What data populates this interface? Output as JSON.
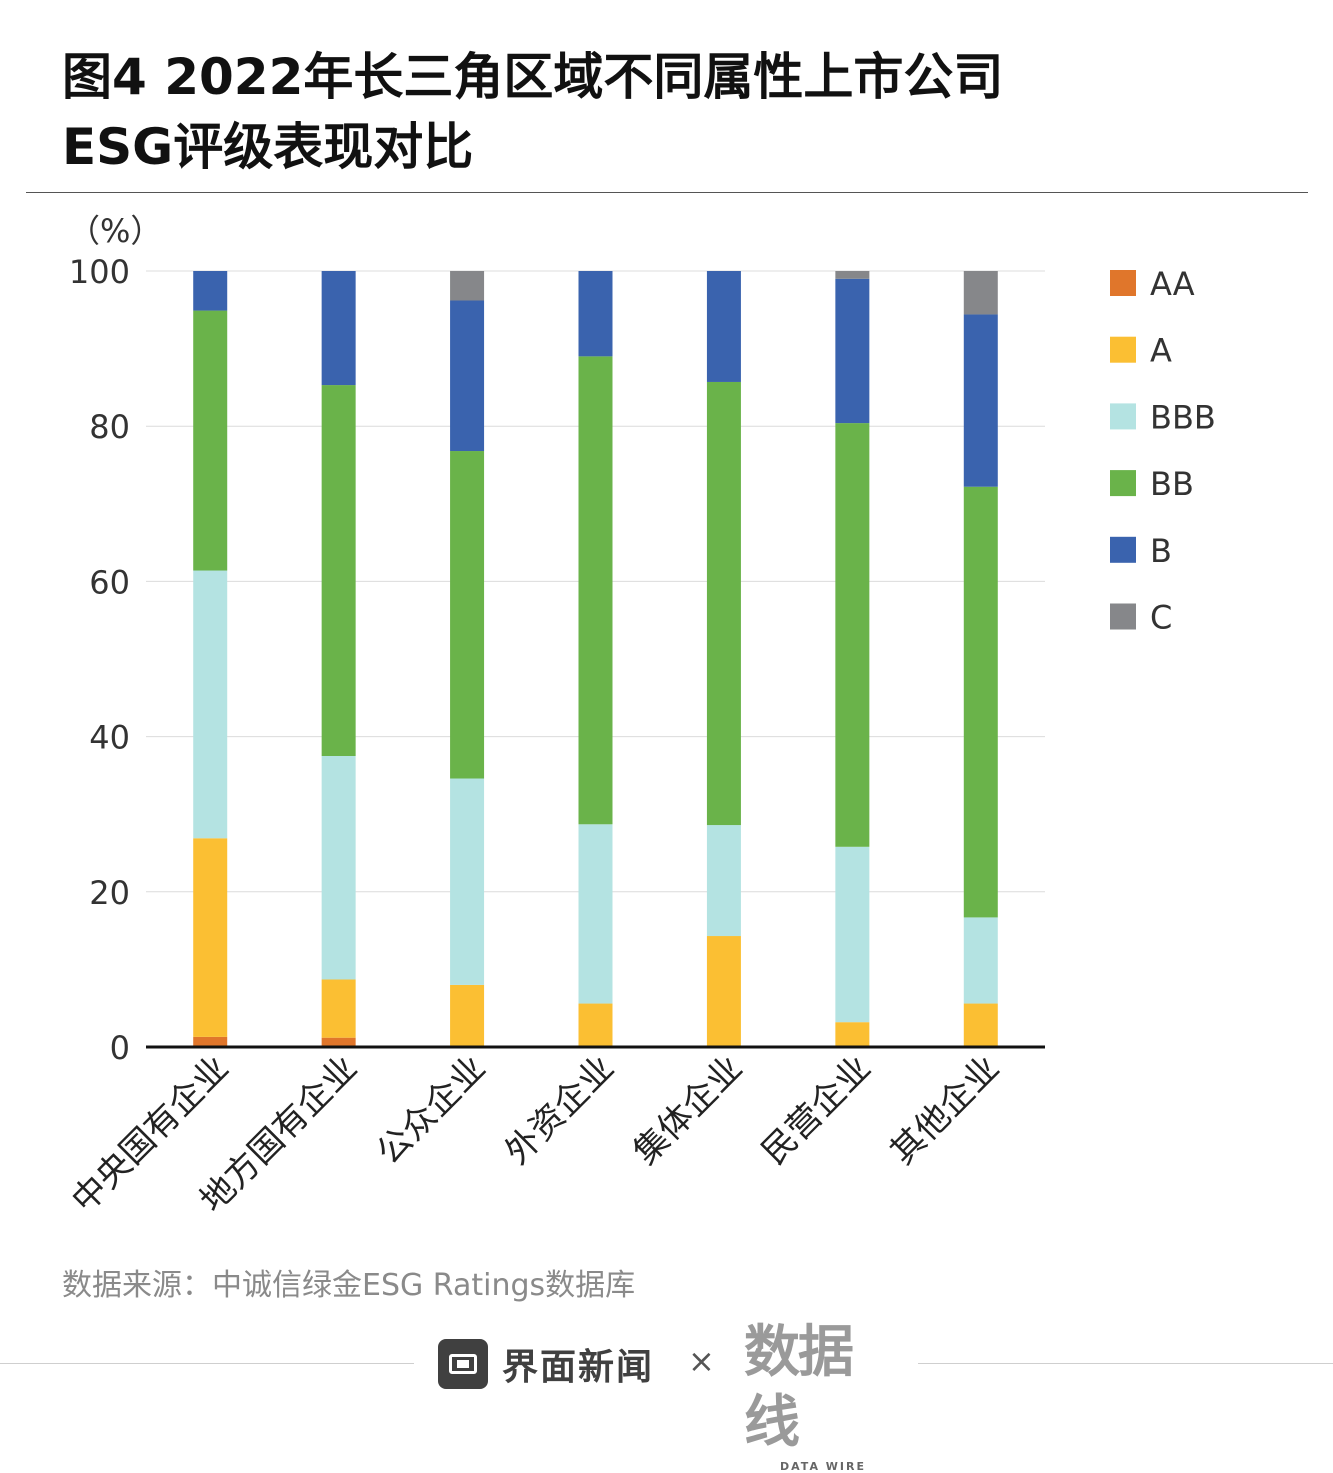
{
  "title_line1": "图4 2022年长三角区域不同属性上市公司",
  "title_line2": "ESG评级表现对比",
  "source": "数据来源：中诚信绿金ESG Ratings数据库",
  "footer": {
    "brand": "界面新闻",
    "times": "×",
    "logo_main": "数据线",
    "logo_sub": "DATA WIRE"
  },
  "colors": {
    "AA": "#e0762b",
    "A": "#fbbf33",
    "BBB": "#b4e3e2",
    "BB": "#6ab34a",
    "B": "#3a63ae",
    "C": "#86878a"
  },
  "chart_data": {
    "type": "bar",
    "stacked": true,
    "unit_label": "（%）",
    "ylim": [
      0,
      100
    ],
    "yticks": [
      "0",
      "20",
      "40",
      "60",
      "80",
      "100"
    ],
    "ytick_values": [
      0,
      20,
      40,
      60,
      80,
      100
    ],
    "grid": true,
    "legend_position": "right",
    "categories": [
      "中央国有企业",
      "地方国有企业",
      "公众企业",
      "外资企业",
      "集体企业",
      "民营企业",
      "其他企业"
    ],
    "series": [
      {
        "name": "AA",
        "values": [
          1.3,
          1.2,
          0,
          0,
          0,
          0,
          0
        ]
      },
      {
        "name": "A",
        "values": [
          25.6,
          7.5,
          8.0,
          5.6,
          14.3,
          3.2,
          5.6
        ]
      },
      {
        "name": "BBB",
        "values": [
          34.5,
          28.8,
          26.6,
          23.1,
          14.3,
          22.6,
          11.1
        ]
      },
      {
        "name": "BB",
        "values": [
          33.5,
          47.8,
          42.2,
          60.3,
          57.1,
          54.6,
          55.5
        ]
      },
      {
        "name": "B",
        "values": [
          5.1,
          14.7,
          19.4,
          11.0,
          14.3,
          18.6,
          22.2
        ]
      },
      {
        "name": "C",
        "values": [
          0,
          0,
          3.8,
          0,
          0,
          1.0,
          5.6
        ]
      }
    ]
  }
}
